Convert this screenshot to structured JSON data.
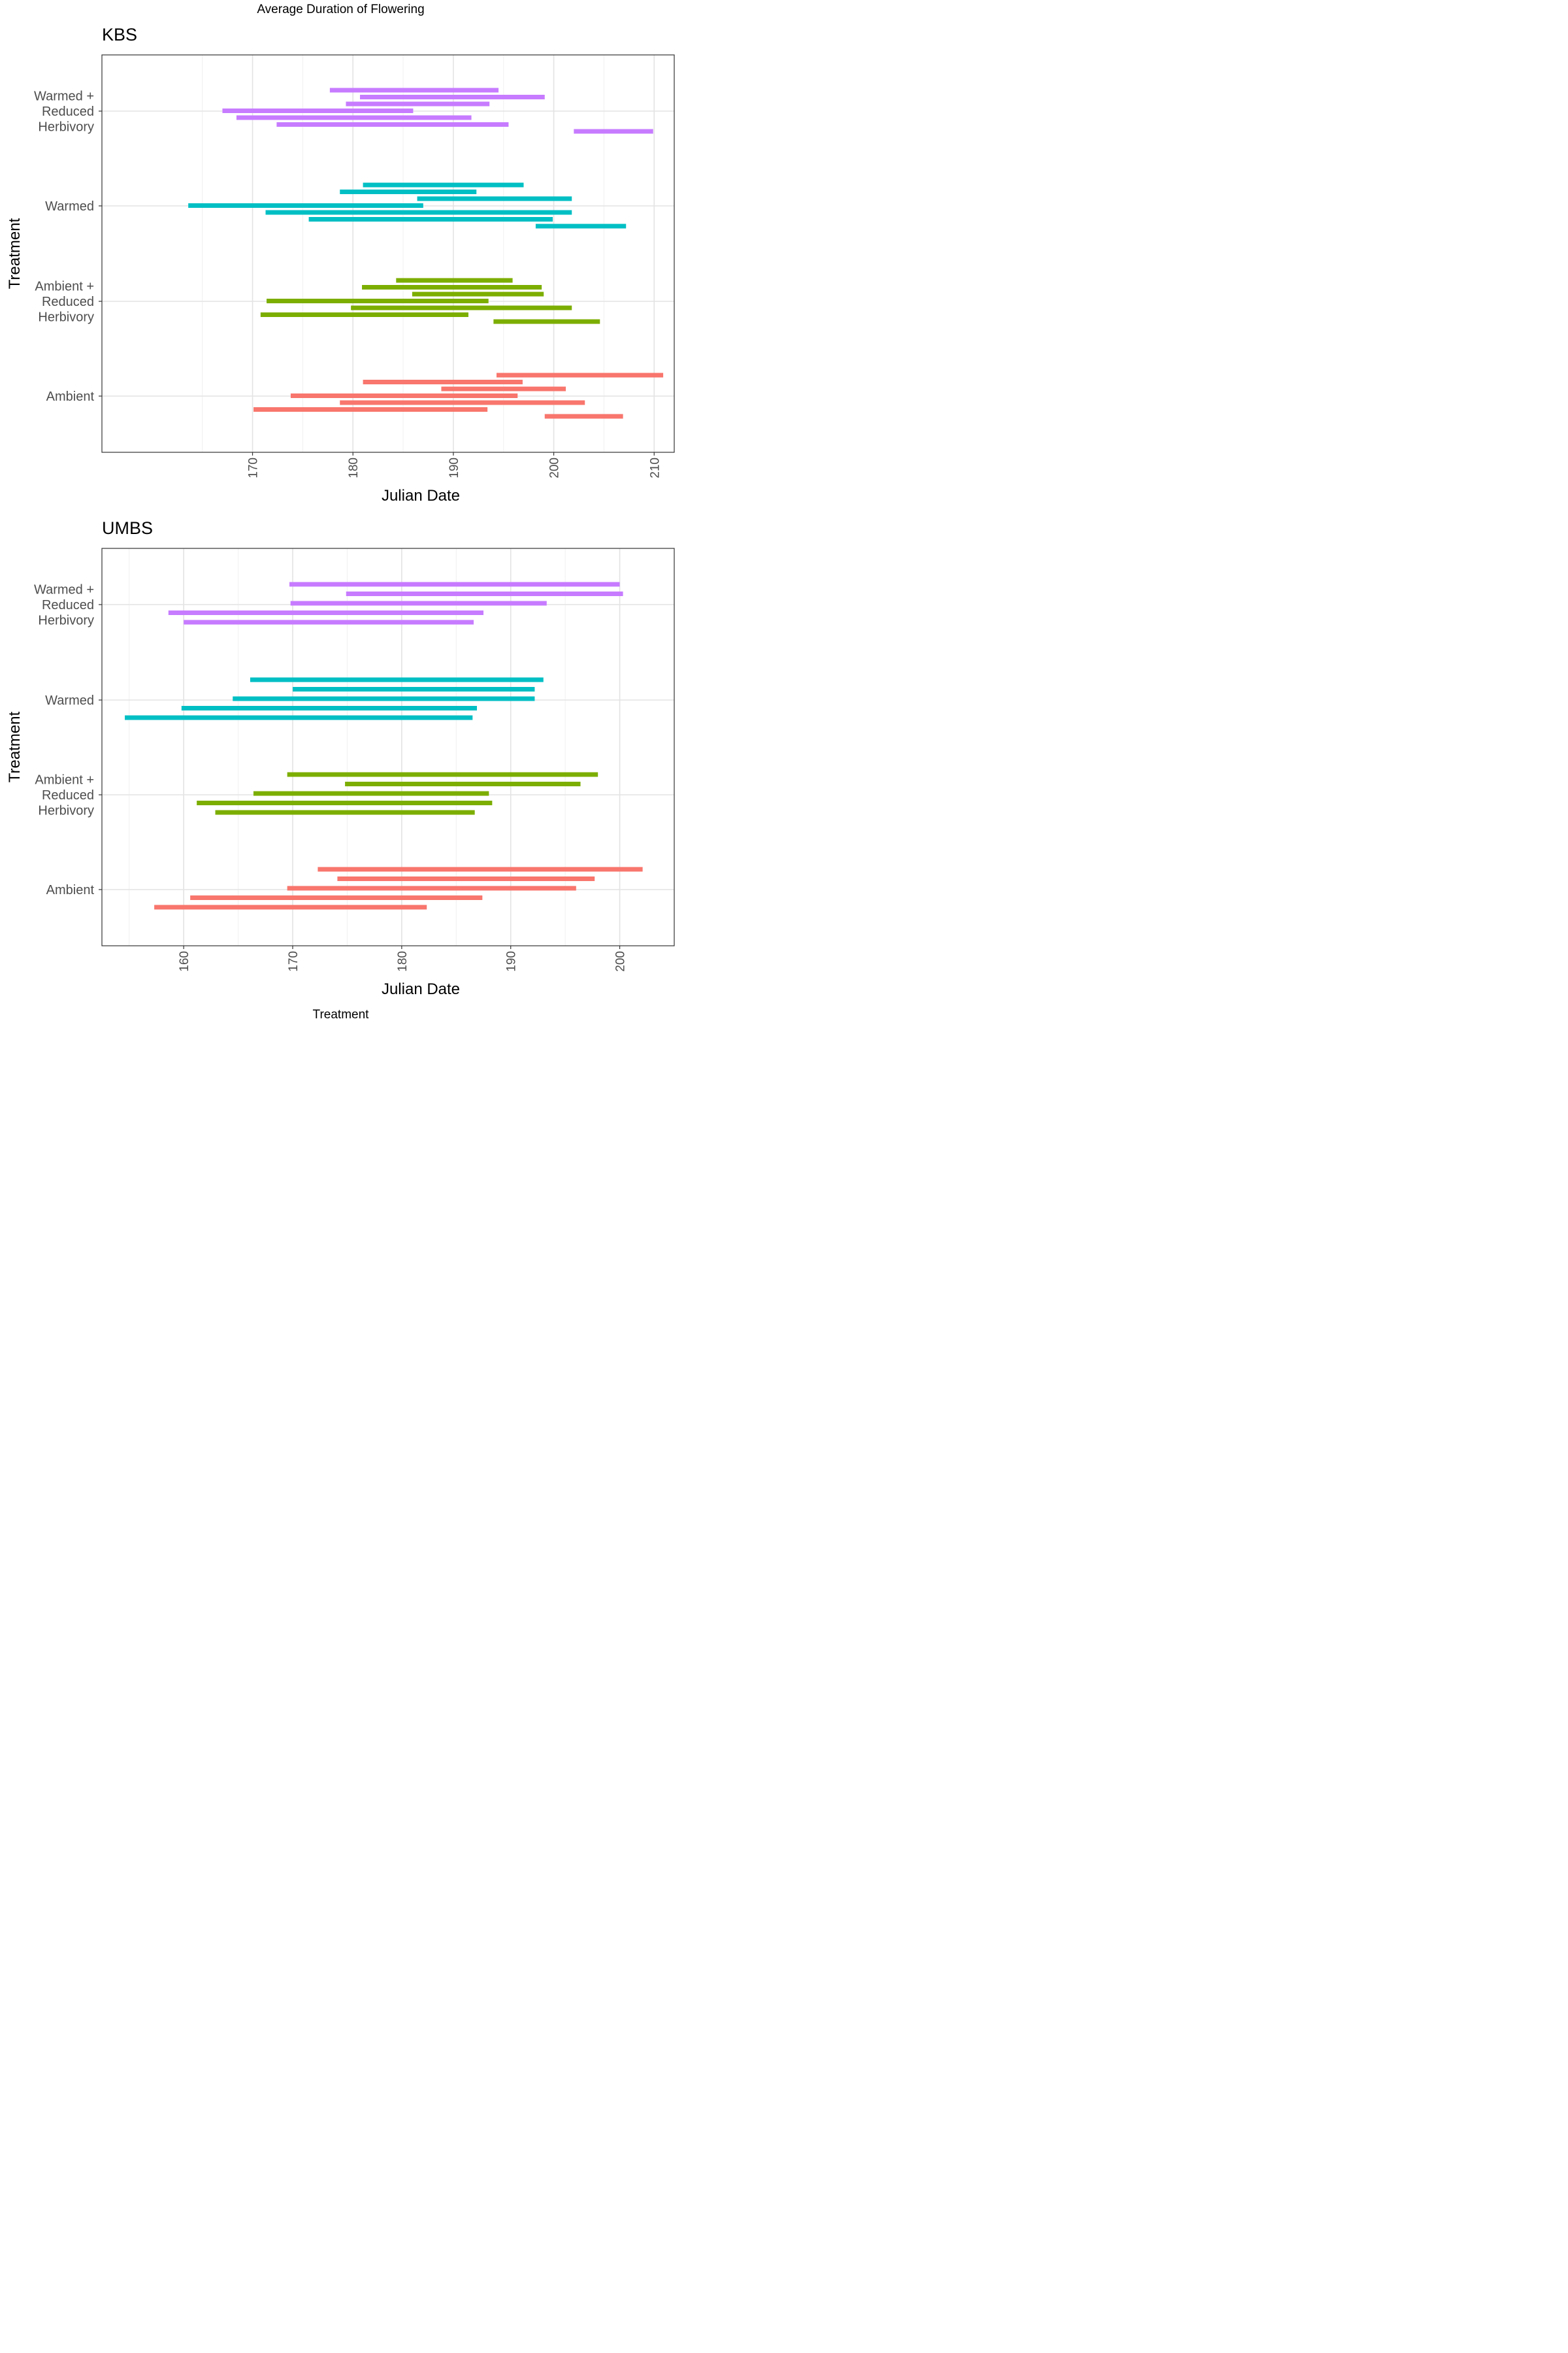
{
  "figure": {
    "title": "Average Duration of Flowering",
    "caption": "Treatment"
  },
  "chart_data": [
    {
      "type": "bar",
      "orientation": "horizontal-range",
      "title": "KBS",
      "xlabel": "Julian Date",
      "ylabel": "Treatment",
      "xlim": [
        155,
        212
      ],
      "xticks": [
        170,
        180,
        190,
        200,
        210
      ],
      "grid": true,
      "categories": [
        "Ambient",
        "Ambient + Reduced Herbivory",
        "Warmed",
        "Warmed + Reduced Herbivory"
      ],
      "category_labels": [
        [
          "Ambient"
        ],
        [
          "Ambient +",
          "Reduced",
          "Herbivory"
        ],
        [
          "Warmed"
        ],
        [
          "Warmed +",
          "Reduced",
          "Herbivory"
        ]
      ],
      "colors": [
        "#F8766D",
        "#7CAE00",
        "#00BFC4",
        "#C77CFF"
      ],
      "series": [
        {
          "category": "Warmed + Reduced Herbivory",
          "ranges": [
            [
              177.7,
              194.5
            ],
            [
              180.7,
              199.1
            ],
            [
              179.3,
              193.6
            ],
            [
              167.0,
              186.0
            ],
            [
              168.4,
              191.8
            ],
            [
              172.4,
              195.5
            ],
            [
              202.0,
              209.9
            ]
          ]
        },
        {
          "category": "Warmed",
          "ranges": [
            [
              181.0,
              197.0
            ],
            [
              178.7,
              192.3
            ],
            [
              186.4,
              201.8
            ],
            [
              163.6,
              187.0
            ],
            [
              171.3,
              201.8
            ],
            [
              175.6,
              199.9
            ],
            [
              198.2,
              207.2
            ]
          ]
        },
        {
          "category": "Ambient + Reduced Herbivory",
          "ranges": [
            [
              184.3,
              195.9
            ],
            [
              180.9,
              198.8
            ],
            [
              185.9,
              199.0
            ],
            [
              171.4,
              193.5
            ],
            [
              179.8,
              201.8
            ],
            [
              170.8,
              191.5
            ],
            [
              194.0,
              204.6
            ]
          ]
        },
        {
          "category": "Ambient",
          "ranges": [
            [
              194.3,
              210.9
            ],
            [
              181.0,
              196.9
            ],
            [
              188.8,
              201.2
            ],
            [
              173.8,
              196.4
            ],
            [
              178.7,
              203.1
            ],
            [
              170.1,
              193.4
            ],
            [
              199.1,
              206.9
            ]
          ]
        }
      ]
    },
    {
      "type": "bar",
      "orientation": "horizontal-range",
      "title": "UMBS",
      "xlabel": "Julian Date",
      "ylabel": "Treatment",
      "xlim": [
        152.5,
        205
      ],
      "xticks": [
        160,
        170,
        180,
        190,
        200
      ],
      "grid": true,
      "categories": [
        "Ambient",
        "Ambient + Reduced Herbivory",
        "Warmed",
        "Warmed + Reduced Herbivory"
      ],
      "category_labels": [
        [
          "Ambient"
        ],
        [
          "Ambient +",
          "Reduced",
          "Herbivory"
        ],
        [
          "Warmed"
        ],
        [
          "Warmed +",
          "Reduced",
          "Herbivory"
        ]
      ],
      "colors": [
        "#F8766D",
        "#7CAE00",
        "#00BFC4",
        "#C77CFF"
      ],
      "series": [
        {
          "category": "Warmed + Reduced Herbivory",
          "ranges": [
            [
              169.7,
              200.0
            ],
            [
              174.9,
              200.3
            ],
            [
              169.8,
              193.3
            ],
            [
              158.6,
              187.5
            ],
            [
              160.0,
              186.6
            ]
          ]
        },
        {
          "category": "Warmed",
          "ranges": [
            [
              166.1,
              193.0
            ],
            [
              170.0,
              192.2
            ],
            [
              164.5,
              192.2
            ],
            [
              159.8,
              186.9
            ],
            [
              154.6,
              186.5
            ]
          ]
        },
        {
          "category": "Ambient + Reduced Herbivory",
          "ranges": [
            [
              169.5,
              198.0
            ],
            [
              174.8,
              196.4
            ],
            [
              166.4,
              188.0
            ],
            [
              161.2,
              188.3
            ],
            [
              162.9,
              186.7
            ]
          ]
        },
        {
          "category": "Ambient",
          "ranges": [
            [
              172.3,
              202.1
            ],
            [
              174.1,
              197.7
            ],
            [
              169.5,
              196.0
            ],
            [
              160.6,
              187.4
            ],
            [
              157.3,
              182.3
            ]
          ]
        }
      ]
    }
  ]
}
